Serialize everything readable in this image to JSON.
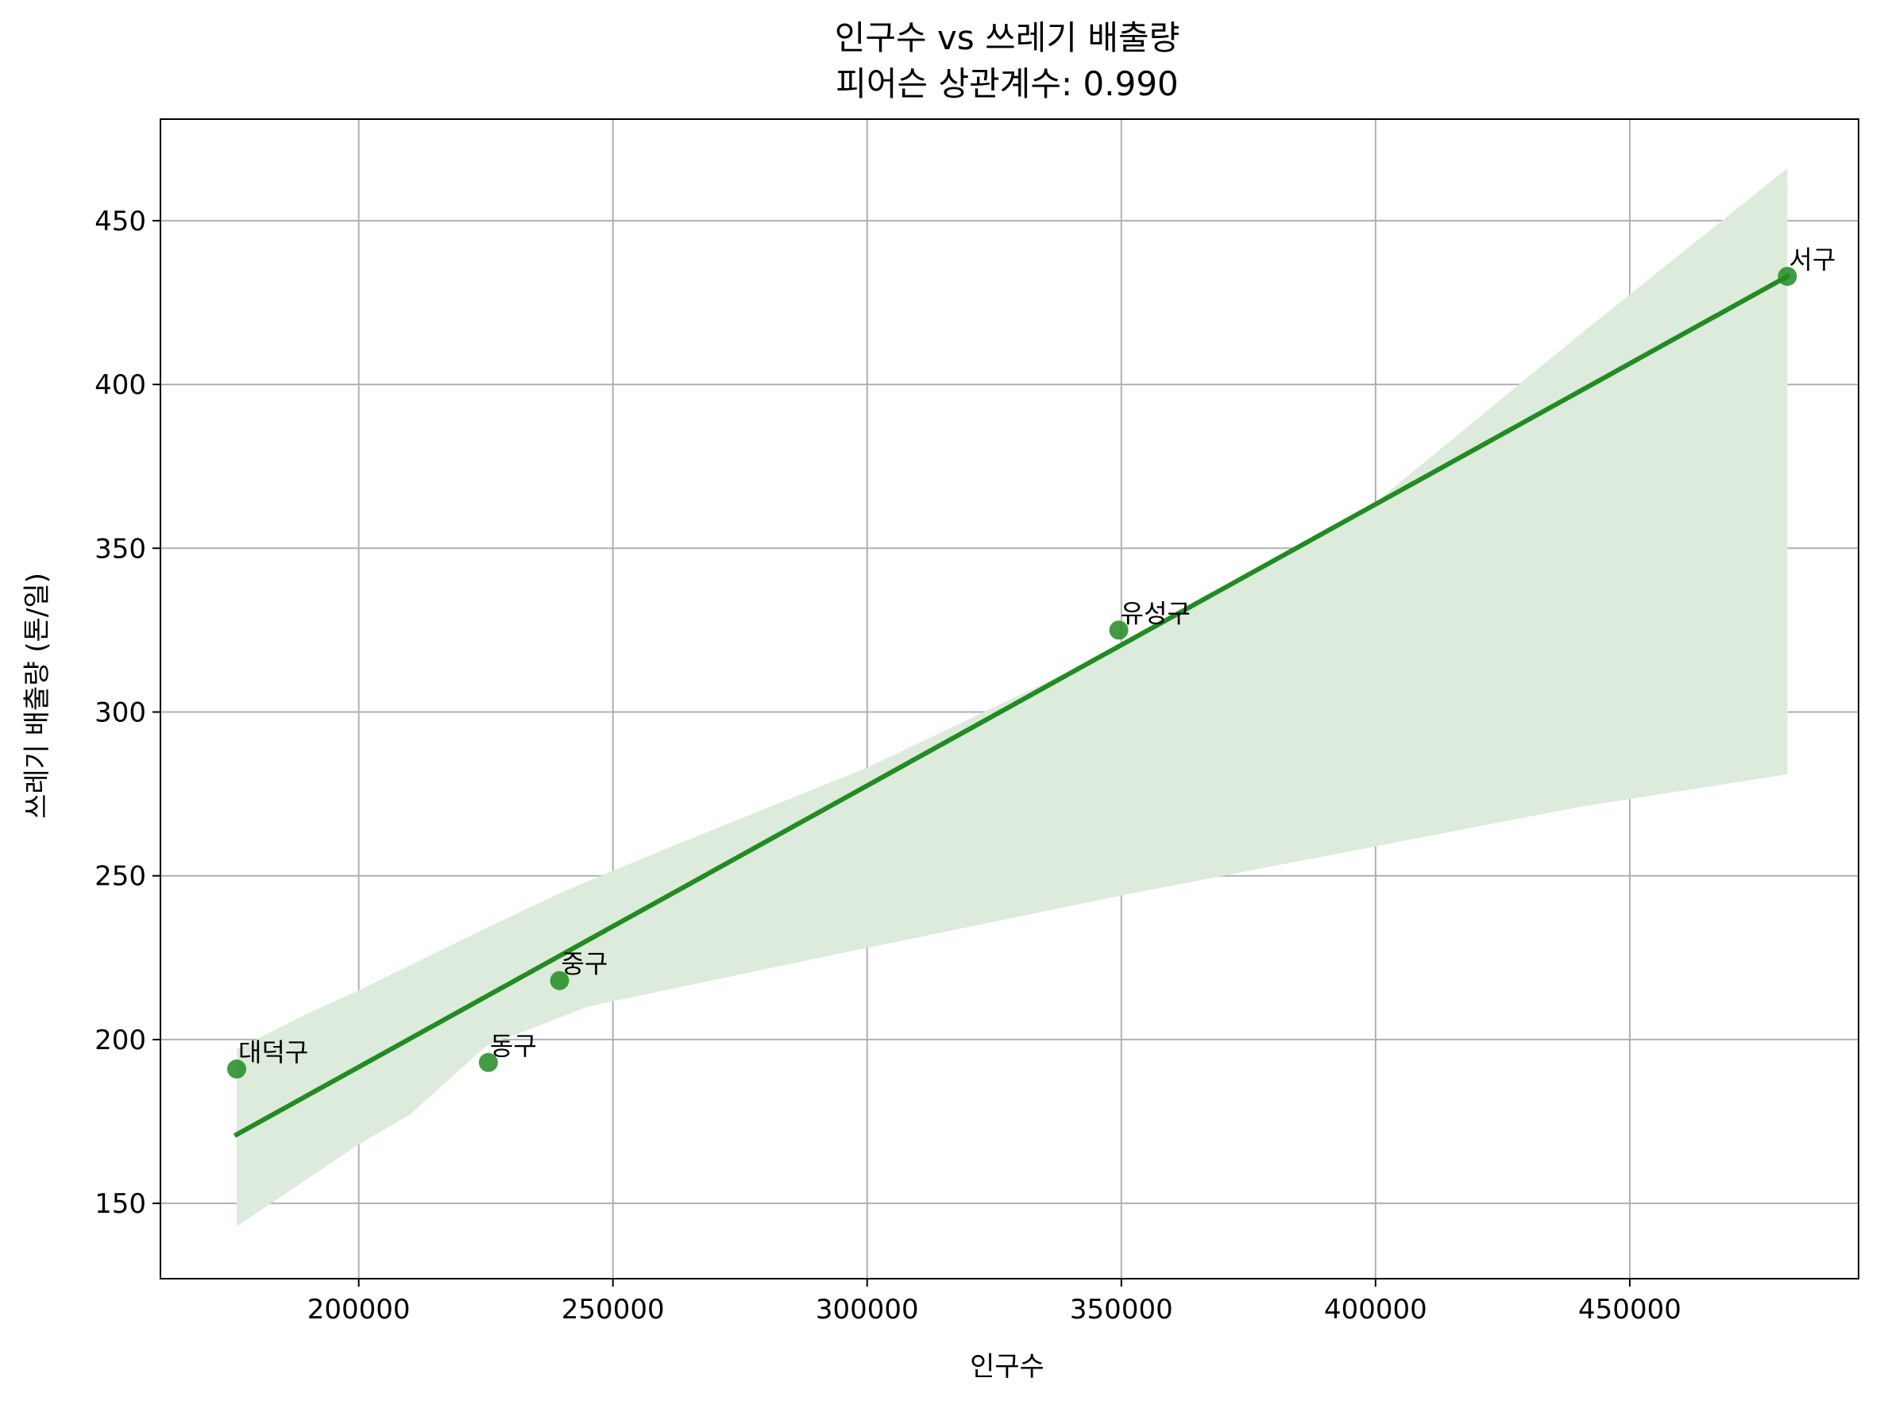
{
  "chart_data": {
    "type": "scatter",
    "title": "인구수 vs 쓰레기 배출량",
    "subtitle": "피어슨 상관계수: 0.990",
    "xlabel": "인구수",
    "ylabel": "쓰레기 배출량 (톤/일)",
    "xlim": [
      161000,
      495000
    ],
    "ylim": [
      127,
      481
    ],
    "xticks": [
      200000,
      250000,
      300000,
      350000,
      400000,
      450000
    ],
    "yticks": [
      150,
      200,
      250,
      300,
      350,
      400,
      450
    ],
    "grid": true,
    "colors": {
      "point": "#228b22",
      "line": "#228b22",
      "band": "#dcebdc",
      "grid": "#b0b0b0"
    },
    "points": [
      {
        "label": "대덕구",
        "x": 176000,
        "y": 191
      },
      {
        "label": "동구",
        "x": 225500,
        "y": 193
      },
      {
        "label": "중구",
        "x": 239500,
        "y": 218
      },
      {
        "label": "유성구",
        "x": 349500,
        "y": 325
      },
      {
        "label": "서구",
        "x": 481000,
        "y": 433
      }
    ],
    "regression": {
      "x": [
        176000,
        481000
      ],
      "y": [
        171,
        433
      ]
    },
    "confidence_band": {
      "upper": [
        [
          176000,
          197
        ],
        [
          190000,
          208
        ],
        [
          200000,
          215
        ],
        [
          225000,
          234
        ],
        [
          240000,
          245
        ],
        [
          260000,
          258
        ],
        [
          300000,
          283
        ],
        [
          350000,
          320
        ],
        [
          400000,
          364
        ],
        [
          440000,
          415
        ],
        [
          481000,
          466
        ]
      ],
      "lower": [
        [
          481000,
          281
        ],
        [
          440000,
          271
        ],
        [
          400000,
          259
        ],
        [
          350000,
          244
        ],
        [
          300000,
          228
        ],
        [
          260000,
          215
        ],
        [
          245000,
          210
        ],
        [
          240000,
          207
        ],
        [
          225000,
          198
        ],
        [
          210000,
          177
        ],
        [
          200000,
          168
        ],
        [
          176000,
          143
        ]
      ]
    }
  }
}
